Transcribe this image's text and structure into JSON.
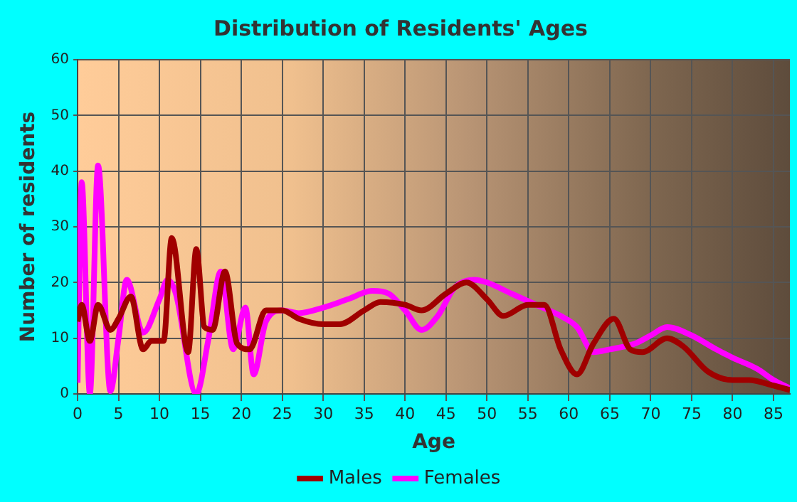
{
  "chart_data": {
    "type": "line",
    "title": "Distribution of Residents' Ages",
    "xlabel": "Age",
    "ylabel": "Number of residents",
    "xlim": [
      0,
      87
    ],
    "xticks": [
      0,
      5,
      10,
      15,
      20,
      25,
      30,
      35,
      40,
      45,
      50,
      55,
      60,
      65,
      70,
      75,
      80,
      85
    ],
    "ylim": [
      0,
      60
    ],
    "yticks": [
      0,
      10,
      20,
      30,
      40,
      50,
      60
    ],
    "grid": true,
    "legend": "bottom",
    "marker": "none",
    "series": [
      {
        "name": "Males",
        "color": "#a00000",
        "x": [
          0,
          0.5,
          1.5,
          2.5,
          4,
          5,
          6.5,
          8,
          9,
          10.5,
          11.5,
          13.5,
          14.5,
          15.5,
          16.5,
          18,
          19.5,
          21,
          23,
          25,
          27,
          30,
          32,
          35,
          37,
          40,
          42,
          45,
          47.5,
          50,
          52,
          55,
          57,
          59,
          61,
          63,
          65.5,
          67.5,
          69,
          72,
          74,
          77,
          80,
          82,
          85,
          87
        ],
        "values": [
          13,
          16,
          9.5,
          16,
          11.5,
          13.5,
          17.5,
          8,
          9.5,
          9.5,
          28,
          7.5,
          26,
          12,
          11.5,
          22,
          9,
          8,
          15,
          15,
          13.5,
          12.5,
          12.5,
          15,
          16.5,
          16,
          15,
          18,
          20,
          17,
          14,
          16,
          16,
          8,
          3.5,
          9,
          13.5,
          8,
          7.5,
          10,
          8.5,
          4,
          2.5,
          2.5,
          1.5,
          0.7
        ]
      },
      {
        "name": "Females",
        "color": "#ff00ff",
        "x": [
          0,
          0.5,
          1.5,
          2.5,
          4,
          5,
          6,
          8,
          10,
          11,
          12,
          14.5,
          16,
          17.5,
          19,
          20.5,
          21.5,
          23,
          25,
          27,
          30,
          33,
          36,
          38,
          40,
          42,
          44,
          46,
          48.5,
          50,
          53,
          56,
          59,
          61,
          63,
          65,
          68,
          70,
          72,
          75,
          78,
          80,
          83,
          85,
          87
        ],
        "values": [
          2,
          38,
          0,
          41,
          0.5,
          10,
          20.5,
          11,
          17,
          20.5,
          18,
          0,
          10,
          22,
          8,
          15.5,
          3.5,
          13,
          15,
          14.5,
          15.5,
          17,
          18.5,
          18,
          15,
          11.5,
          14,
          19,
          20.5,
          20,
          18,
          16,
          14,
          12,
          7.5,
          8,
          9,
          10.5,
          12,
          10.5,
          8,
          6.5,
          4.5,
          2.5,
          1
        ]
      }
    ]
  }
}
